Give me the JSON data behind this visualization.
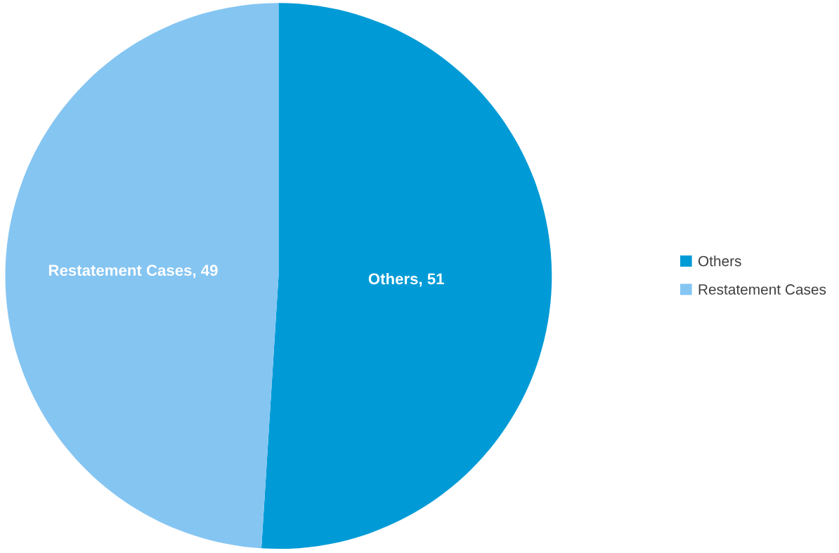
{
  "chart_data": {
    "type": "pie",
    "categories": [
      "Others",
      "Restatement Cases"
    ],
    "values": [
      51,
      49
    ],
    "colors": [
      "#009bd6",
      "#85c5f2"
    ],
    "value_labels": [
      ", 51",
      ", 49"
    ],
    "legend": "right"
  }
}
